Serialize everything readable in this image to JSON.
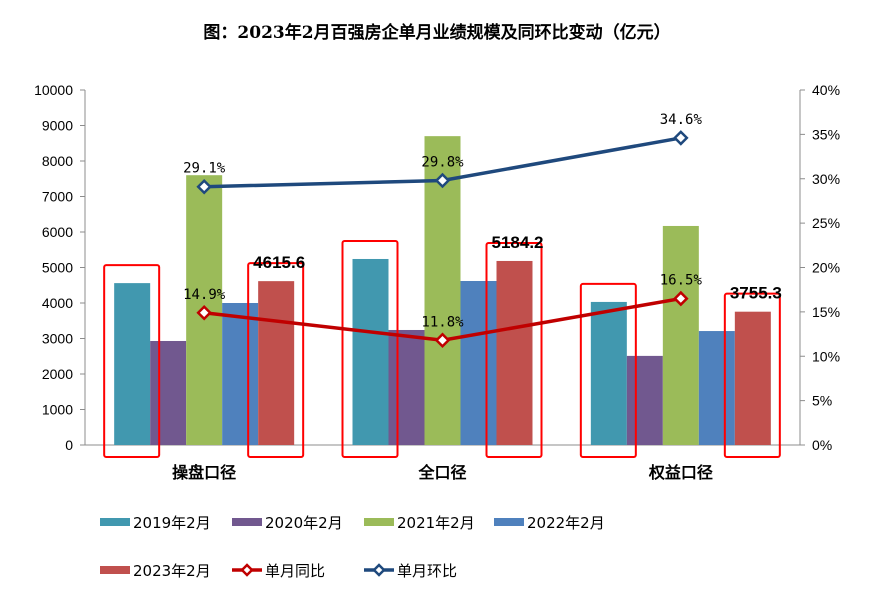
{
  "chart_data": {
    "type": "bar",
    "title": "图：2023年2月百强房企单月业绩规模及同环比变动（亿元）",
    "categories": [
      "操盘口径",
      "全口径",
      "权益口径"
    ],
    "series": [
      {
        "name": "2019年2月",
        "color": "#4198AF",
        "values": [
          4560,
          5240,
          4030
        ]
      },
      {
        "name": "2020年2月",
        "color": "#71588F",
        "values": [
          2930,
          3240,
          2510
        ]
      },
      {
        "name": "2021年2月",
        "color": "#9BBB59",
        "values": [
          7600,
          8700,
          6170
        ]
      },
      {
        "name": "2022年2月",
        "color": "#4F81BD",
        "values": [
          4000,
          4620,
          3210
        ]
      },
      {
        "name": "2023年2月",
        "color": "#C0504D",
        "values": [
          4615.6,
          5184.2,
          3755.3
        ],
        "labels": [
          "4615.6",
          "5184.2",
          "3755.3"
        ]
      }
    ],
    "line_series": [
      {
        "name": "单月同比",
        "color": "#C00000",
        "values": [
          14.9,
          11.8,
          16.5
        ],
        "labels": [
          "14.9%",
          "11.8%",
          "16.5%"
        ]
      },
      {
        "name": "单月环比",
        "color": "#1F497D",
        "values": [
          29.1,
          29.8,
          34.6
        ],
        "labels": [
          "29.1%",
          "29.8%",
          "34.6%"
        ]
      }
    ],
    "ylim": [
      0,
      10000
    ],
    "yticks": [
      "0",
      "1000",
      "2000",
      "3000",
      "4000",
      "5000",
      "6000",
      "7000",
      "8000",
      "9000",
      "10000"
    ],
    "y2lim": [
      0,
      40
    ],
    "y2ticks": [
      "0%",
      "5%",
      "10%",
      "15%",
      "20%",
      "25%",
      "30%",
      "35%",
      "40%"
    ],
    "xlabel": "",
    "ylabel": "",
    "grid": false,
    "legend_position": "bottom",
    "highlight_color": "#FF0000",
    "highlighted_series": [
      "2019年2月",
      "2023年2月"
    ]
  }
}
